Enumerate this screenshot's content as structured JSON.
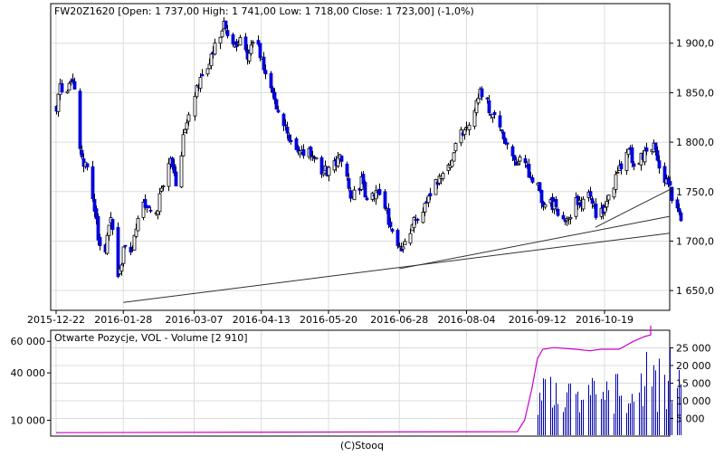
{
  "page": {
    "footer": "(C)Stooq"
  },
  "chart_data": [
    {
      "type": "ohlc",
      "title": "FW20Z1620 [Open: 1 737,00  High: 1 741,00  Low: 1 718,00  Close: 1 723,00] (-1,0%)",
      "x_tick_labels": [
        "2015-12-22",
        "2016-01-28",
        "2016-03-07",
        "2016-04-13",
        "2016-05-20",
        "2016-06-28",
        "2016-08-04",
        "2016-09-12",
        "2016-10-19"
      ],
      "y_tick_labels": [
        "1 650,0",
        "1 700,0",
        "1 750,0",
        "1 800,0",
        "1 850,0",
        "1 900,0"
      ],
      "y_ticks": [
        1650,
        1700,
        1750,
        1800,
        1850,
        1900
      ],
      "ylim": [
        1630,
        1940
      ],
      "grid": true,
      "up_color": "#ffffff",
      "down_color": "#0000dd",
      "close_path": [
        [
          "2015-12-22",
          1838
        ],
        [
          "2015-12-24",
          1852
        ],
        [
          "2015-12-28",
          1845
        ],
        [
          "2015-12-31",
          1868
        ],
        [
          "2016-01-05",
          1780
        ],
        [
          "2016-01-08",
          1770
        ],
        [
          "2016-01-12",
          1730
        ],
        [
          "2016-01-14",
          1705
        ],
        [
          "2016-01-18",
          1690
        ],
        [
          "2016-01-21",
          1720
        ],
        [
          "2016-01-25",
          1668
        ],
        [
          "2016-01-28",
          1688
        ],
        [
          "2016-02-02",
          1695
        ],
        [
          "2016-02-05",
          1722
        ],
        [
          "2016-02-10",
          1740
        ],
        [
          "2016-02-15",
          1725
        ],
        [
          "2016-02-18",
          1755
        ],
        [
          "2016-02-23",
          1790
        ],
        [
          "2016-02-26",
          1760
        ],
        [
          "2016-03-02",
          1812
        ],
        [
          "2016-03-07",
          1845
        ],
        [
          "2016-03-10",
          1862
        ],
        [
          "2016-03-15",
          1880
        ],
        [
          "2016-03-18",
          1900
        ],
        [
          "2016-03-23",
          1918
        ],
        [
          "2016-03-29",
          1896
        ],
        [
          "2016-04-01",
          1908
        ],
        [
          "2016-04-05",
          1885
        ],
        [
          "2016-04-08",
          1905
        ],
        [
          "2016-04-13",
          1885
        ],
        [
          "2016-04-18",
          1858
        ],
        [
          "2016-04-21",
          1838
        ],
        [
          "2016-04-26",
          1818
        ],
        [
          "2016-04-29",
          1798
        ],
        [
          "2016-05-04",
          1785
        ],
        [
          "2016-05-09",
          1795
        ],
        [
          "2016-05-12",
          1780
        ],
        [
          "2016-05-17",
          1770
        ],
        [
          "2016-05-20",
          1772
        ],
        [
          "2016-05-25",
          1785
        ],
        [
          "2016-05-30",
          1762
        ],
        [
          "2016-06-02",
          1742
        ],
        [
          "2016-06-07",
          1760
        ],
        [
          "2016-06-10",
          1735
        ],
        [
          "2016-06-15",
          1752
        ],
        [
          "2016-06-20",
          1738
        ],
        [
          "2016-06-24",
          1708
        ],
        [
          "2016-06-28",
          1688
        ],
        [
          "2016-07-01",
          1705
        ],
        [
          "2016-07-06",
          1718
        ],
        [
          "2016-07-11",
          1735
        ],
        [
          "2016-07-15",
          1752
        ],
        [
          "2016-07-20",
          1762
        ],
        [
          "2016-07-25",
          1778
        ],
        [
          "2016-07-29",
          1795
        ],
        [
          "2016-08-04",
          1818
        ],
        [
          "2016-08-09",
          1840
        ],
        [
          "2016-08-12",
          1850
        ],
        [
          "2016-08-17",
          1832
        ],
        [
          "2016-08-22",
          1815
        ],
        [
          "2016-08-26",
          1798
        ],
        [
          "2016-08-31",
          1782
        ],
        [
          "2016-09-05",
          1775
        ],
        [
          "2016-09-09",
          1765
        ],
        [
          "2016-09-12",
          1752
        ],
        [
          "2016-09-15",
          1740
        ],
        [
          "2016-09-20",
          1735
        ],
        [
          "2016-09-23",
          1730
        ],
        [
          "2016-09-28",
          1725
        ],
        [
          "2016-10-03",
          1738
        ],
        [
          "2016-10-06",
          1742
        ],
        [
          "2016-10-11",
          1748
        ],
        [
          "2016-10-14",
          1730
        ],
        [
          "2016-10-19",
          1735
        ],
        [
          "2016-10-24",
          1760
        ],
        [
          "2016-10-27",
          1775
        ],
        [
          "2016-11-01",
          1790
        ],
        [
          "2016-11-04",
          1778
        ],
        [
          "2016-11-09",
          1785
        ],
        [
          "2016-11-14",
          1798
        ],
        [
          "2016-11-17",
          1780
        ],
        [
          "2016-11-22",
          1760
        ],
        [
          "2016-11-25",
          1745
        ],
        [
          "2016-11-30",
          1723
        ]
      ],
      "trendlines": [
        [
          [
            "2016-01-28",
            1638
          ],
          [
            "2016-12-05",
            1708
          ]
        ],
        [
          [
            "2016-06-28",
            1672
          ],
          [
            "2016-12-05",
            1725
          ]
        ],
        [
          [
            "2016-10-14",
            1714
          ],
          [
            "2016-12-05",
            1752
          ]
        ]
      ]
    },
    {
      "type": "bar+line",
      "title": "Otwarte Pozycje, VOL - Volume [2 910]",
      "left_axis_tick_labels": [
        "10 000",
        "40 000",
        "60 000"
      ],
      "left_axis_ticks": [
        10000,
        40000,
        60000
      ],
      "right_axis_tick_labels": [
        "5 000",
        "10 000",
        "15 000",
        "20 000",
        "25 000"
      ],
      "right_axis_ticks": [
        5000,
        10000,
        15000,
        20000,
        25000
      ],
      "left_range": [
        0,
        67000
      ],
      "right_range": [
        0,
        30000
      ],
      "volume_color": "#0000aa",
      "open_interest_color": "#cc00cc",
      "open_interest_path": [
        [
          "2015-12-22",
          2200
        ],
        [
          "2016-09-01",
          2800
        ],
        [
          "2016-09-05",
          10000
        ],
        [
          "2016-09-09",
          30000
        ],
        [
          "2016-09-12",
          49000
        ],
        [
          "2016-09-15",
          55000
        ],
        [
          "2016-09-21",
          56000
        ],
        [
          "2016-10-03",
          55000
        ],
        [
          "2016-10-11",
          54000
        ],
        [
          "2016-10-17",
          55000
        ],
        [
          "2016-10-27",
          55000
        ],
        [
          "2016-11-04",
          60000
        ],
        [
          "2016-11-10",
          63000
        ],
        [
          "2016-11-30",
          64000
        ],
        [
          "2016-12-01",
          70000
        ]
      ]
    }
  ]
}
